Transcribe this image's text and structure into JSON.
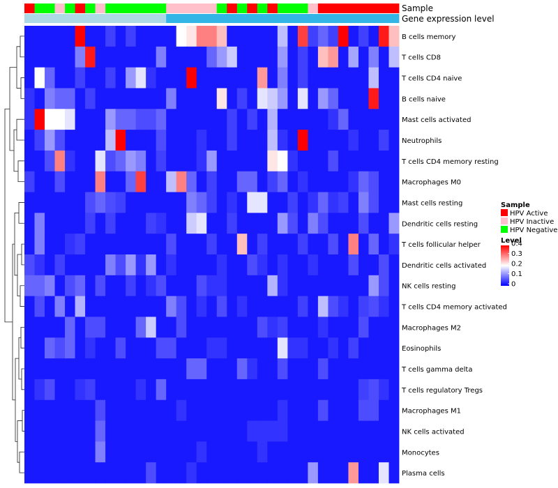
{
  "chart_data": {
    "type": "heatmap",
    "title": "",
    "annotation_tracks": [
      {
        "name": "Sample",
        "values": [
          "HPV Active",
          "HPV Negative",
          "HPV Negative",
          "HPV Inactive",
          "HPV Negative",
          "HPV Active",
          "HPV Negative",
          "HPV Inactive",
          "HPV Negative",
          "HPV Negative",
          "HPV Negative",
          "HPV Negative",
          "HPV Negative",
          "HPV Negative",
          "HPV Inactive",
          "HPV Inactive",
          "HPV Inactive",
          "HPV Inactive",
          "HPV Inactive",
          "HPV Negative",
          "HPV Active",
          "HPV Negative",
          "HPV Active",
          "HPV Negative",
          "HPV Active",
          "HPV Negative",
          "HPV Negative",
          "HPV Negative",
          "HPV Inactive",
          "HPV Active",
          "HPV Active",
          "HPV Active",
          "HPV Active",
          "HPV Active",
          "HPV Active",
          "HPV Active",
          "HPV Active"
        ]
      },
      {
        "name": "Gene expression level",
        "values": [
          "Low",
          "Low",
          "Low",
          "Low",
          "Low",
          "Low",
          "Low",
          "Low",
          "Low",
          "Low",
          "Low",
          "Low",
          "Low",
          "Low",
          "High",
          "High",
          "High",
          "High",
          "High",
          "High",
          "High",
          "High",
          "High",
          "High",
          "High",
          "High",
          "High",
          "High",
          "High",
          "High",
          "High",
          "High",
          "High",
          "High",
          "High",
          "High",
          "High"
        ]
      }
    ],
    "rows": [
      "B cells memory",
      "T cells CD8",
      "T cells CD4 naive",
      "B cells naive",
      "Mast cells activated",
      "Neutrophils",
      "T cells CD4 memory resting",
      "Macrophages M0",
      "Mast cells resting",
      "Dendritic cells resting",
      "T cells follicular helper",
      "Dendritic cells activated",
      "NK cells resting",
      "T cells CD4 memory activated",
      "Macrophages M2",
      "Eosinophils",
      "T cells gamma delta",
      "T cells regulatory  Tregs",
      "Macrophages M1",
      "NK cells activated",
      "Monocytes",
      "Plasma cells"
    ],
    "values": [
      [
        0.02,
        0.02,
        0.02,
        0.02,
        0.02,
        0.4,
        0.02,
        0.02,
        0.05,
        0.02,
        0.05,
        0.02,
        0.02,
        0.02,
        0.02,
        0.2,
        0.22,
        0.3,
        0.3,
        0.25,
        0.02,
        0.02,
        0.02,
        0.02,
        0.02,
        0.15,
        0.02,
        0.35,
        0.05,
        0.08,
        0.05,
        0.4,
        0.02,
        0.05,
        0.02,
        0.38,
        0.25
      ],
      [
        0.02,
        0.02,
        0.02,
        0.02,
        0.02,
        0.1,
        0.38,
        0.02,
        0.02,
        0.02,
        0.02,
        0.02,
        0.02,
        0.1,
        0.02,
        0.02,
        0.02,
        0.02,
        0.08,
        0.12,
        0.16,
        0.02,
        0.02,
        0.02,
        0.02,
        0.12,
        0.02,
        0.05,
        0.02,
        0.25,
        0.28,
        0.02,
        0.13,
        0.02,
        0.1,
        0.02,
        0.15
      ],
      [
        0.02,
        0.2,
        0.08,
        0.02,
        0.02,
        0.05,
        0.02,
        0.02,
        0.05,
        0.02,
        0.12,
        0.18,
        0.04,
        0.02,
        0.02,
        0.02,
        0.4,
        0.02,
        0.02,
        0.02,
        0.02,
        0.02,
        0.02,
        0.28,
        0.02,
        0.1,
        0.02,
        0.05,
        0.02,
        0.02,
        0.02,
        0.02,
        0.02,
        0.02,
        0.15,
        0.02,
        0.02
      ],
      [
        0.04,
        0.02,
        0.1,
        0.08,
        0.08,
        0.02,
        0.05,
        0.02,
        0.02,
        0.02,
        0.02,
        0.02,
        0.02,
        0.02,
        0.1,
        0.02,
        0.02,
        0.02,
        0.02,
        0.22,
        0.02,
        0.05,
        0.02,
        0.18,
        0.16,
        0.12,
        0.02,
        0.18,
        0.02,
        0.12,
        0.08,
        0.02,
        0.02,
        0.02,
        0.38,
        0.02,
        0.02
      ],
      [
        0.04,
        0.4,
        0.2,
        0.2,
        0.18,
        0.02,
        0.02,
        0.02,
        0.12,
        0.08,
        0.08,
        0.06,
        0.06,
        0.08,
        0.02,
        0.02,
        0.02,
        0.02,
        0.02,
        0.02,
        0.05,
        0.02,
        0.05,
        0.02,
        0.14,
        0.02,
        0.02,
        0.02,
        0.02,
        0.02,
        0.04,
        0.08,
        0.02,
        0.02,
        0.02,
        0.02,
        0.02
      ],
      [
        0.02,
        0.05,
        0.12,
        0.06,
        0.02,
        0.02,
        0.02,
        0.02,
        0.15,
        0.4,
        0.02,
        0.02,
        0.02,
        0.06,
        0.02,
        0.02,
        0.02,
        0.04,
        0.02,
        0.02,
        0.05,
        0.02,
        0.02,
        0.02,
        0.15,
        0.04,
        0.02,
        0.4,
        0.02,
        0.02,
        0.02,
        0.02,
        0.04,
        0.02,
        0.02,
        0.05,
        0.02
      ],
      [
        0.02,
        0.02,
        0.06,
        0.3,
        0.04,
        0.02,
        0.02,
        0.18,
        0.06,
        0.08,
        0.12,
        0.1,
        0.02,
        0.05,
        0.02,
        0.02,
        0.02,
        0.04,
        0.12,
        0.02,
        0.02,
        0.02,
        0.02,
        0.02,
        0.22,
        0.2,
        0.04,
        0.02,
        0.02,
        0.02,
        0.06,
        0.02,
        0.02,
        0.02,
        0.02,
        0.02,
        0.02
      ],
      [
        0.05,
        0.02,
        0.02,
        0.06,
        0.02,
        0.02,
        0.02,
        0.3,
        0.02,
        0.02,
        0.08,
        0.35,
        0.02,
        0.02,
        0.15,
        0.3,
        0.08,
        0.02,
        0.05,
        0.02,
        0.02,
        0.08,
        0.08,
        0.02,
        0.05,
        0.08,
        0.02,
        0.04,
        0.02,
        0.02,
        0.02,
        0.02,
        0.04,
        0.08,
        0.06,
        0.02,
        0.02
      ],
      [
        0.02,
        0.02,
        0.02,
        0.02,
        0.02,
        0.02,
        0.06,
        0.08,
        0.06,
        0.05,
        0.02,
        0.02,
        0.02,
        0.02,
        0.02,
        0.02,
        0.1,
        0.08,
        0.05,
        0.02,
        0.04,
        0.02,
        0.18,
        0.18,
        0.02,
        0.02,
        0.05,
        0.02,
        0.04,
        0.08,
        0.04,
        0.05,
        0.02,
        0.1,
        0.06,
        0.02,
        0.02
      ],
      [
        0.02,
        0.1,
        0.02,
        0.02,
        0.02,
        0.02,
        0.05,
        0.02,
        0.05,
        0.02,
        0.02,
        0.02,
        0.05,
        0.04,
        0.02,
        0.02,
        0.16,
        0.18,
        0.02,
        0.02,
        0.05,
        0.02,
        0.02,
        0.02,
        0.02,
        0.12,
        0.06,
        0.02,
        0.1,
        0.06,
        0.02,
        0.02,
        0.02,
        0.06,
        0.02,
        0.02,
        0.12
      ],
      [
        0.02,
        0.1,
        0.02,
        0.02,
        0.04,
        0.05,
        0.02,
        0.02,
        0.02,
        0.02,
        0.02,
        0.02,
        0.02,
        0.02,
        0.06,
        0.02,
        0.02,
        0.02,
        0.05,
        0.02,
        0.02,
        0.25,
        0.02,
        0.05,
        0.02,
        0.02,
        0.02,
        0.05,
        0.02,
        0.02,
        0.06,
        0.02,
        0.3,
        0.02,
        0.08,
        0.02,
        0.04
      ],
      [
        0.06,
        0.04,
        0.02,
        0.05,
        0.02,
        0.02,
        0.02,
        0.02,
        0.1,
        0.06,
        0.12,
        0.04,
        0.12,
        0.02,
        0.04,
        0.02,
        0.02,
        0.02,
        0.02,
        0.04,
        0.02,
        0.02,
        0.06,
        0.04,
        0.02,
        0.04,
        0.02,
        0.02,
        0.04,
        0.02,
        0.02,
        0.02,
        0.06,
        0.02,
        0.02,
        0.06,
        0.02
      ],
      [
        0.08,
        0.08,
        0.1,
        0.02,
        0.06,
        0.08,
        0.02,
        0.06,
        0.02,
        0.02,
        0.05,
        0.02,
        0.04,
        0.06,
        0.02,
        0.02,
        0.02,
        0.06,
        0.04,
        0.04,
        0.02,
        0.02,
        0.02,
        0.02,
        0.14,
        0.04,
        0.02,
        0.02,
        0.02,
        0.02,
        0.02,
        0.02,
        0.02,
        0.02,
        0.12,
        0.06,
        0.02
      ],
      [
        0.02,
        0.06,
        0.02,
        0.1,
        0.02,
        0.14,
        0.02,
        0.02,
        0.02,
        0.02,
        0.02,
        0.02,
        0.02,
        0.02,
        0.1,
        0.06,
        0.02,
        0.04,
        0.02,
        0.06,
        0.02,
        0.04,
        0.02,
        0.02,
        0.02,
        0.02,
        0.02,
        0.05,
        0.02,
        0.15,
        0.06,
        0.04,
        0.02,
        0.05,
        0.06,
        0.04,
        0.02
      ],
      [
        0.02,
        0.02,
        0.02,
        0.02,
        0.08,
        0.02,
        0.06,
        0.06,
        0.02,
        0.02,
        0.02,
        0.08,
        0.16,
        0.02,
        0.02,
        0.06,
        0.02,
        0.02,
        0.02,
        0.02,
        0.02,
        0.02,
        0.02,
        0.06,
        0.04,
        0.05,
        0.02,
        0.02,
        0.02,
        0.04,
        0.02,
        0.02,
        0.02,
        0.06,
        0.02,
        0.02,
        0.02
      ],
      [
        0.02,
        0.02,
        0.08,
        0.06,
        0.08,
        0.02,
        0.04,
        0.02,
        0.02,
        0.06,
        0.02,
        0.02,
        0.02,
        0.06,
        0.06,
        0.02,
        0.02,
        0.02,
        0.04,
        0.04,
        0.02,
        0.02,
        0.02,
        0.02,
        0.02,
        0.18,
        0.04,
        0.04,
        0.02,
        0.02,
        0.04,
        0.02,
        0.05,
        0.02,
        0.02,
        0.02,
        0.02
      ],
      [
        0.02,
        0.02,
        0.02,
        0.02,
        0.02,
        0.02,
        0.02,
        0.02,
        0.02,
        0.02,
        0.02,
        0.02,
        0.02,
        0.02,
        0.02,
        0.02,
        0.08,
        0.08,
        0.02,
        0.02,
        0.02,
        0.08,
        0.04,
        0.02,
        0.02,
        0.06,
        0.02,
        0.02,
        0.02,
        0.06,
        0.02,
        0.02,
        0.02,
        0.02,
        0.02,
        0.02,
        0.02
      ],
      [
        0.02,
        0.04,
        0.06,
        0.02,
        0.02,
        0.04,
        0.05,
        0.02,
        0.02,
        0.02,
        0.02,
        0.04,
        0.02,
        0.08,
        0.02,
        0.02,
        0.02,
        0.02,
        0.02,
        0.02,
        0.02,
        0.02,
        0.02,
        0.02,
        0.02,
        0.02,
        0.02,
        0.02,
        0.02,
        0.02,
        0.02,
        0.02,
        0.02,
        0.05,
        0.06,
        0.04,
        0.02
      ],
      [
        0.02,
        0.02,
        0.02,
        0.02,
        0.02,
        0.02,
        0.02,
        0.06,
        0.02,
        0.02,
        0.02,
        0.02,
        0.02,
        0.02,
        0.02,
        0.04,
        0.02,
        0.02,
        0.02,
        0.02,
        0.02,
        0.02,
        0.02,
        0.02,
        0.02,
        0.04,
        0.02,
        0.02,
        0.02,
        0.06,
        0.02,
        0.02,
        0.02,
        0.06,
        0.06,
        0.02,
        0.02
      ],
      [
        0.02,
        0.02,
        0.02,
        0.02,
        0.02,
        0.02,
        0.02,
        0.08,
        0.02,
        0.02,
        0.02,
        0.02,
        0.02,
        0.02,
        0.02,
        0.02,
        0.02,
        0.02,
        0.02,
        0.02,
        0.02,
        0.02,
        0.04,
        0.04,
        0.04,
        0.04,
        0.02,
        0.02,
        0.02,
        0.02,
        0.02,
        0.02,
        0.02,
        0.02,
        0.02,
        0.02,
        0.02
      ],
      [
        0.02,
        0.02,
        0.02,
        0.02,
        0.02,
        0.02,
        0.02,
        0.1,
        0.02,
        0.02,
        0.02,
        0.02,
        0.02,
        0.02,
        0.02,
        0.02,
        0.02,
        0.04,
        0.02,
        0.02,
        0.02,
        0.02,
        0.02,
        0.04,
        0.02,
        0.02,
        0.02,
        0.02,
        0.02,
        0.02,
        0.02,
        0.02,
        0.02,
        0.02,
        0.02,
        0.02,
        0.02
      ],
      [
        0.02,
        0.02,
        0.02,
        0.02,
        0.02,
        0.02,
        0.02,
        0.02,
        0.02,
        0.02,
        0.02,
        0.02,
        0.06,
        0.02,
        0.02,
        0.02,
        0.04,
        0.02,
        0.02,
        0.02,
        0.02,
        0.02,
        0.02,
        0.02,
        0.02,
        0.02,
        0.02,
        0.02,
        0.12,
        0.02,
        0.02,
        0.02,
        0.28,
        0.02,
        0.02,
        0.18,
        0.02
      ]
    ],
    "color_scale": {
      "min": 0,
      "max": 0.4,
      "colors": [
        "#0000ff",
        "#ffffff",
        "#ff0000"
      ],
      "ticks": [
        0,
        0.1,
        0.2,
        0.3,
        0.4
      ],
      "tick_labels": [
        "0",
        "0.1",
        "0.2",
        "0.3",
        "0.4"
      ]
    },
    "legend": {
      "sample_title": "Sample",
      "sample_entries": [
        {
          "label": "HPV Active",
          "color": "#ff0000"
        },
        {
          "label": "HPV Inactive",
          "color": "#ffc0cb"
        },
        {
          "label": "HPV Negative",
          "color": "#00ff00"
        }
      ],
      "level_title": "Level",
      "expression_colors": {
        "Low": "#add8e6",
        "High": "#33b5e5"
      }
    },
    "row_dendrogram": true
  }
}
